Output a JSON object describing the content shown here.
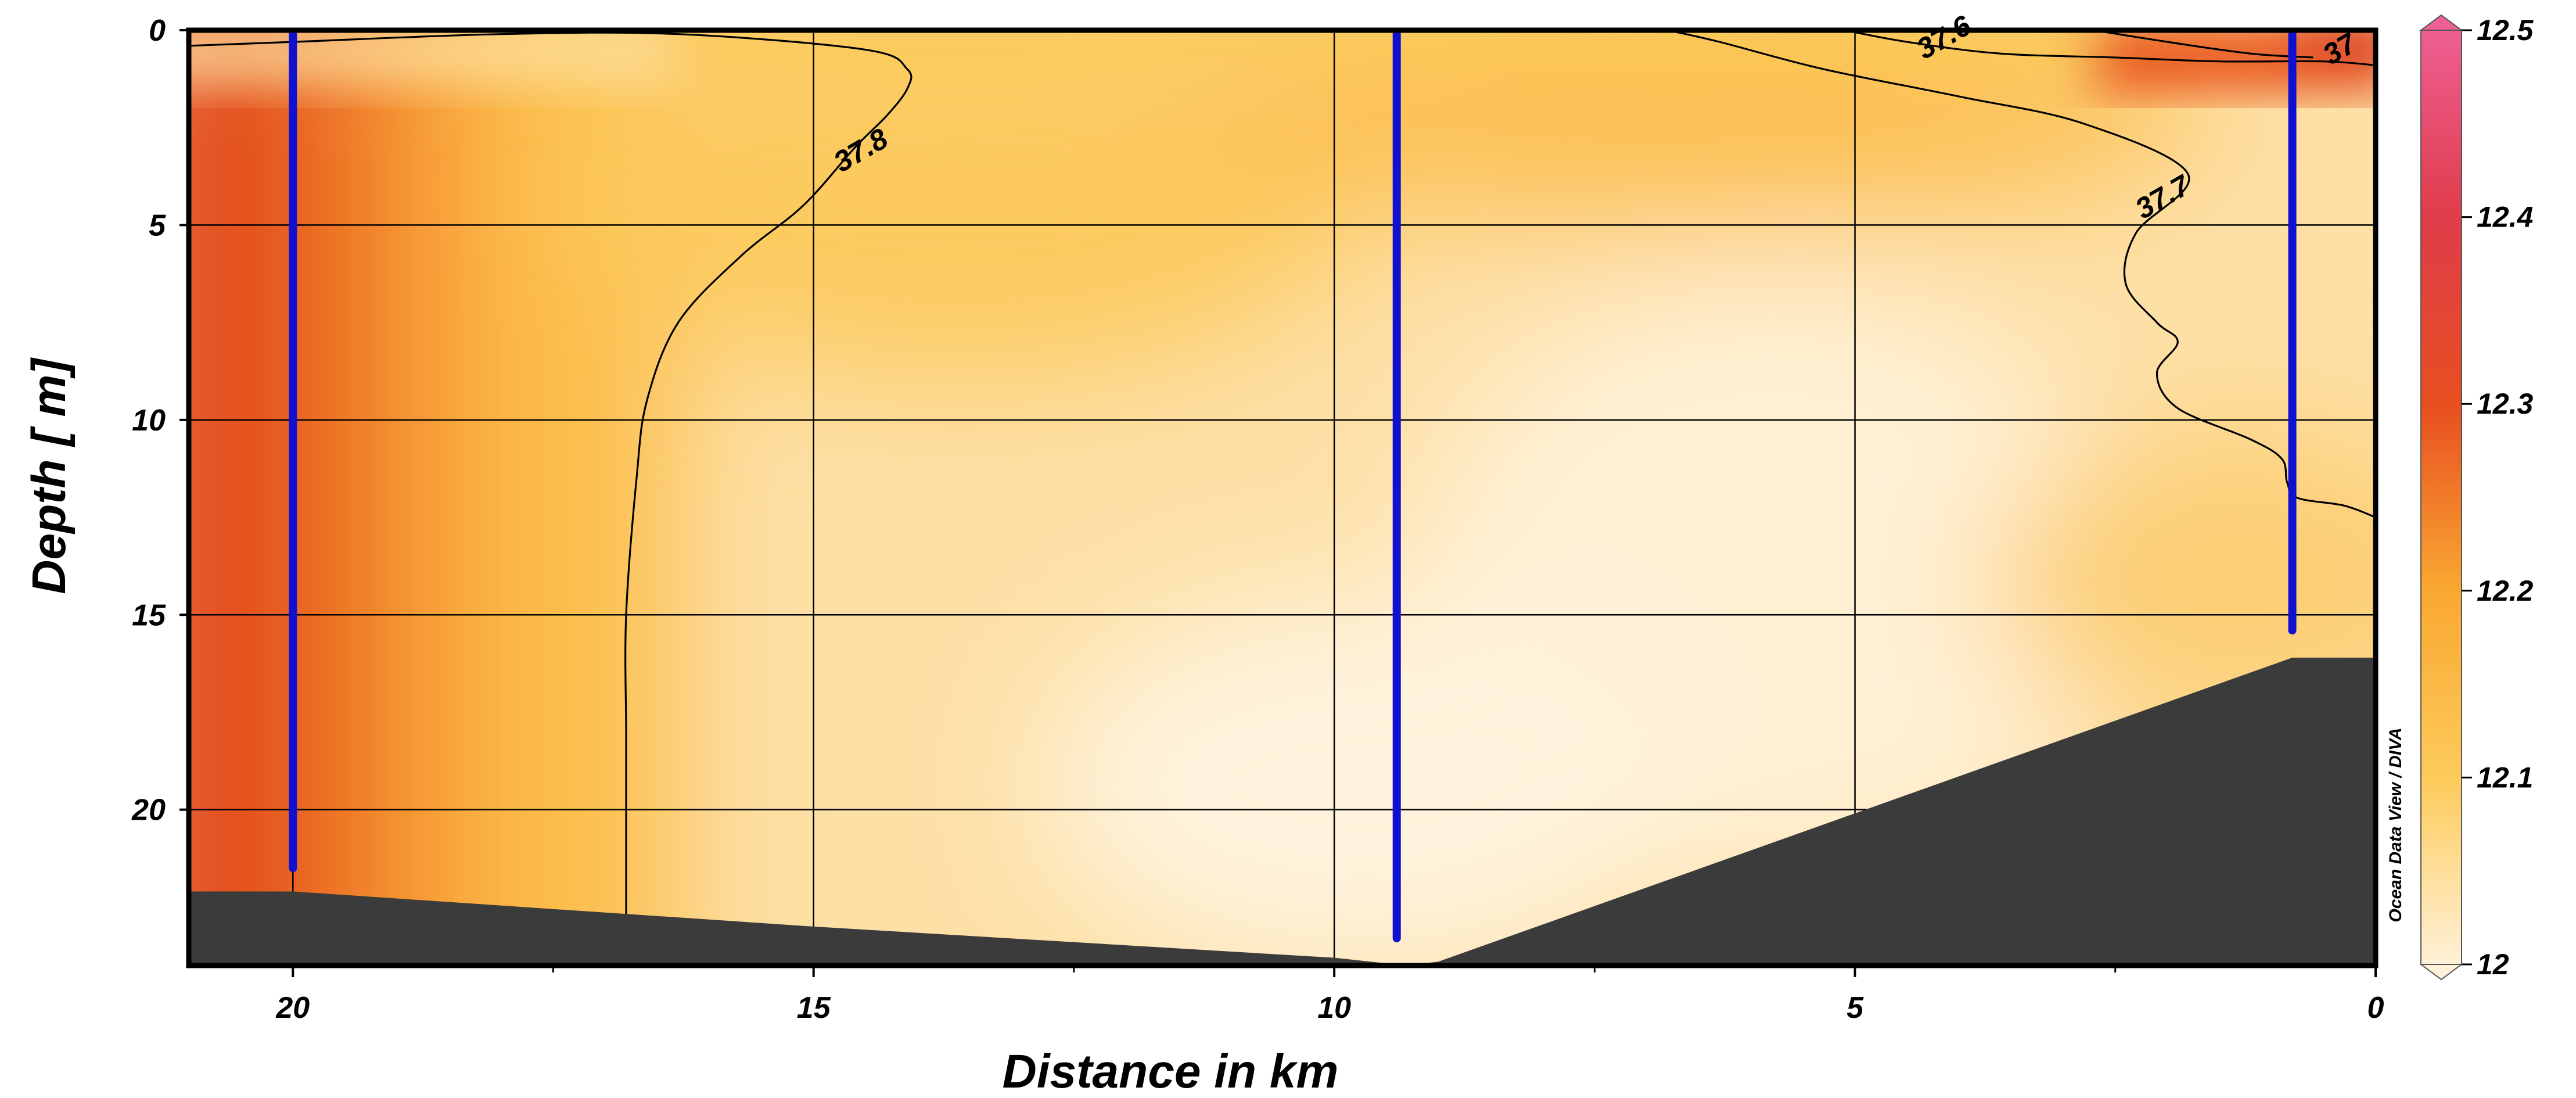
{
  "chart_data": {
    "type": "heatmap",
    "title": "",
    "xlabel": "Distance in km",
    "ylabel": "Depth  [ m]",
    "xlim": [
      21,
      0
    ],
    "ylim": [
      0,
      24
    ],
    "x_ticks": [
      20,
      15,
      10,
      5,
      0
    ],
    "y_ticks": [
      0,
      5,
      10,
      15,
      20
    ],
    "x_ticks_minor": [
      17.5,
      12.5,
      7.5,
      2.5
    ],
    "grid": true,
    "colorbar": {
      "min": 12,
      "max": 12.5,
      "ticks": [
        "12",
        "12.1",
        "12.2",
        "12.3",
        "12.4",
        "12.5"
      ],
      "colors": [
        "#fff1d8",
        "#fdcb5a",
        "#f9a832",
        "#e84e20",
        "#e03c4a",
        "#ee5f93"
      ]
    },
    "credit": "Ocean Data View / DIVA",
    "stations": [
      {
        "x": 20,
        "depth_top": 0,
        "depth_bottom": 21.5
      },
      {
        "x": 9.4,
        "depth_top": 0,
        "depth_bottom": 23.3
      },
      {
        "x": 0.8,
        "depth_top": 0,
        "depth_bottom": 15.4
      }
    ],
    "contours": [
      {
        "label": "37.8",
        "label_at": [
          14.5,
          3.3
        ],
        "points": [
          [
            21,
            0.4
          ],
          [
            20,
            0.3
          ],
          [
            18,
            0.1
          ],
          [
            16.3,
            0.1
          ],
          [
            14.5,
            0.5
          ],
          [
            14.1,
            1.0
          ],
          [
            14.1,
            1.5
          ],
          [
            14.3,
            2.2
          ],
          [
            14.6,
            3.0
          ],
          [
            15.1,
            4.5
          ],
          [
            15.7,
            5.8
          ],
          [
            16.3,
            7.5
          ],
          [
            16.6,
            9.5
          ],
          [
            16.7,
            11.5
          ],
          [
            16.8,
            15
          ],
          [
            16.8,
            18
          ],
          [
            16.8,
            20
          ],
          [
            16.8,
            22.7
          ]
        ]
      },
      {
        "label": "37.7",
        "label_at": [
          2.0,
          4.5
        ],
        "points": [
          [
            6.8,
            0
          ],
          [
            6.3,
            0.3
          ],
          [
            5.3,
            1.0
          ],
          [
            4,
            1.7
          ],
          [
            2.8,
            2.4
          ],
          [
            1.8,
            3.7
          ],
          [
            2.3,
            5.2
          ],
          [
            2.4,
            6.5
          ],
          [
            2.1,
            7.5
          ],
          [
            1.9,
            8.0
          ],
          [
            2.1,
            8.8
          ],
          [
            1.9,
            9.7
          ],
          [
            1.2,
            10.5
          ],
          [
            0.9,
            11.0
          ],
          [
            0.85,
            11.6
          ],
          [
            0.75,
            12.0
          ],
          [
            0.3,
            12.2
          ],
          [
            0,
            12.5
          ]
        ]
      },
      {
        "label": "37.6",
        "label_at": [
          4.1,
          0.4
        ],
        "points": [
          [
            5.1,
            0
          ],
          [
            4.5,
            0.3
          ],
          [
            3.6,
            0.6
          ],
          [
            2.5,
            0.7
          ],
          [
            1.5,
            0.8
          ],
          [
            0.5,
            0.8
          ],
          [
            0,
            0.9
          ]
        ]
      },
      {
        "label": "37",
        "label_at": [
          0.3,
          0.7
        ],
        "points": [
          [
            2.7,
            0
          ],
          [
            2.0,
            0.3
          ],
          [
            1.2,
            0.6
          ],
          [
            0.6,
            0.7
          ]
        ]
      }
    ],
    "bathymetry": [
      [
        21,
        22.1
      ],
      [
        20,
        22.1
      ],
      [
        15,
        23.0
      ],
      [
        10,
        23.8
      ],
      [
        9.3,
        24.0
      ],
      [
        9.0,
        23.9
      ],
      [
        0.8,
        16.1
      ],
      [
        0,
        16.1
      ]
    ],
    "color_field_note_units": "value range 12 to 12.5"
  }
}
